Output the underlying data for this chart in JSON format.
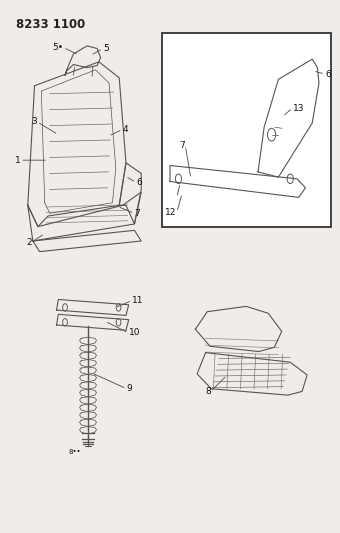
{
  "title": "8233 1100",
  "bg_color": "#f0ede8",
  "line_color": "#555555",
  "label_fontsize": 6.5,
  "title_fontsize": 8.5
}
